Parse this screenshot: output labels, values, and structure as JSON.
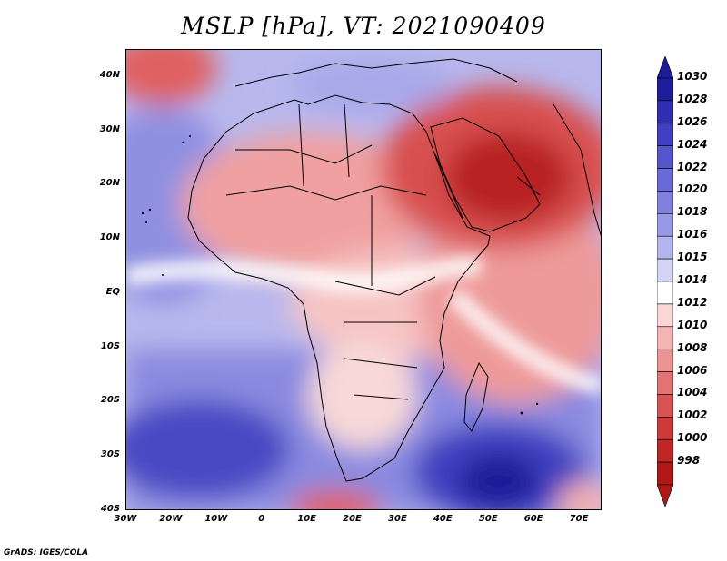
{
  "title": "MSLP [hPa], VT: 2021090409",
  "footer": "GrADS: IGES/COLA",
  "axes": {
    "lat_labels": [
      "40N",
      "30N",
      "20N",
      "10N",
      "EQ",
      "10S",
      "20S",
      "30S",
      "40S"
    ],
    "lon_labels": [
      "30W",
      "20W",
      "10W",
      "0",
      "10E",
      "20E",
      "30E",
      "40E",
      "50E",
      "60E",
      "70E"
    ],
    "lat_range": [
      -40,
      45
    ],
    "lon_range": [
      -30,
      75
    ]
  },
  "colorbar": {
    "levels": [
      "1030",
      "1028",
      "1026",
      "1024",
      "1022",
      "1020",
      "1018",
      "1016",
      "1015",
      "1014",
      "1012",
      "1010",
      "1008",
      "1006",
      "1004",
      "1002",
      "1000",
      "998"
    ],
    "colors": [
      "#1d1d9a",
      "#2f2fb0",
      "#4040c0",
      "#5555cc",
      "#6a6ad6",
      "#8080de",
      "#9898e6",
      "#b4b4ee",
      "#d4d4f6",
      "#ffffff",
      "#fbd6d6",
      "#f5b4b4",
      "#ec9494",
      "#e27474",
      "#d85454",
      "#cc3a3a",
      "#c02626",
      "#b01818"
    ]
  },
  "legend_colors": {
    "low": "#c43030",
    "mid": "#f0a0a0",
    "neutral": "#ffffff",
    "high": "#7070d8",
    "veryhigh": "#2a2aa8"
  }
}
